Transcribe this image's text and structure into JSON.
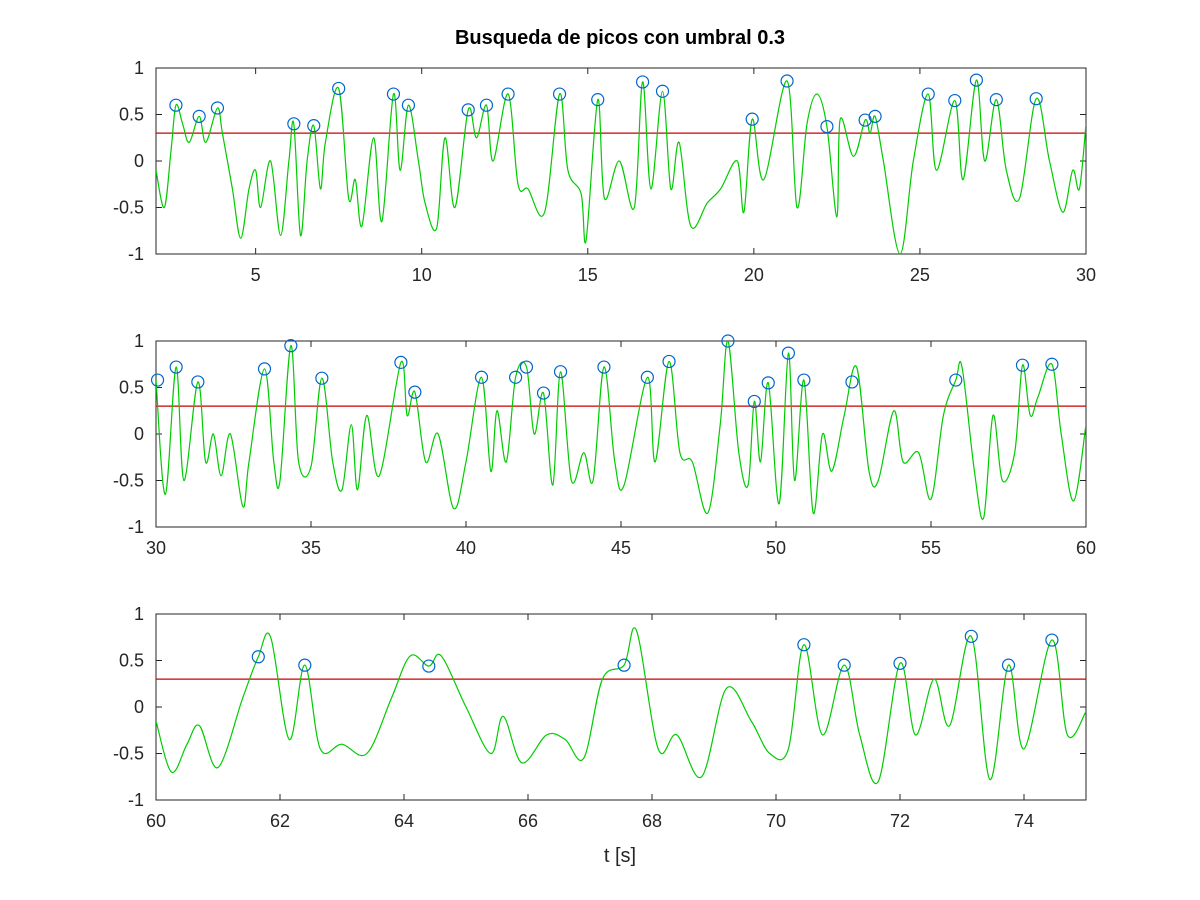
{
  "chart_data": {
    "type": "line",
    "title": "Busqueda de picos con umbral 0.3",
    "xlabel": "t [s]",
    "threshold": 0.3,
    "colors": {
      "signal": "#00cc00",
      "threshold": "#cc0000",
      "peaks": "#0066cc",
      "axes": "#262626"
    },
    "grid": false,
    "subplots": [
      {
        "xlim": [
          2,
          30
        ],
        "ylim": [
          -1,
          1
        ],
        "xticks": [
          5,
          10,
          15,
          20,
          25,
          30
        ],
        "yticks": [
          1,
          0.5,
          0,
          -0.5,
          -1
        ],
        "signal": [
          [
            2,
            -0.1
          ],
          [
            2.25,
            -0.5
          ],
          [
            2.45,
            0.1
          ],
          [
            2.6,
            0.6
          ],
          [
            2.8,
            0.4
          ],
          [
            3.0,
            0.2
          ],
          [
            3.3,
            0.48
          ],
          [
            3.5,
            0.2
          ],
          [
            3.85,
            0.57
          ],
          [
            4.0,
            0.3
          ],
          [
            4.3,
            -0.3
          ],
          [
            4.55,
            -0.83
          ],
          [
            4.8,
            -0.3
          ],
          [
            5.0,
            -0.1
          ],
          [
            5.15,
            -0.5
          ],
          [
            5.45,
            0.0
          ],
          [
            5.75,
            -0.8
          ],
          [
            6.0,
            0.0
          ],
          [
            6.15,
            0.4
          ],
          [
            6.35,
            -0.8
          ],
          [
            6.55,
            0.0
          ],
          [
            6.75,
            0.38
          ],
          [
            6.95,
            -0.3
          ],
          [
            7.1,
            0.2
          ],
          [
            7.5,
            0.78
          ],
          [
            7.8,
            -0.4
          ],
          [
            8.0,
            -0.2
          ],
          [
            8.2,
            -0.7
          ],
          [
            8.55,
            0.25
          ],
          [
            8.8,
            -0.65
          ],
          [
            9.15,
            0.72
          ],
          [
            9.35,
            -0.1
          ],
          [
            9.6,
            0.6
          ],
          [
            9.9,
            0.0
          ],
          [
            10.1,
            -0.45
          ],
          [
            10.45,
            -0.72
          ],
          [
            10.7,
            0.25
          ],
          [
            11.0,
            -0.5
          ],
          [
            11.4,
            0.55
          ],
          [
            11.65,
            0.25
          ],
          [
            11.95,
            0.6
          ],
          [
            12.15,
            0.0
          ],
          [
            12.6,
            0.72
          ],
          [
            12.9,
            -0.25
          ],
          [
            13.2,
            -0.3
          ],
          [
            13.7,
            -0.55
          ],
          [
            14.15,
            0.72
          ],
          [
            14.4,
            -0.1
          ],
          [
            14.8,
            -0.35
          ],
          [
            14.95,
            -0.85
          ],
          [
            15.3,
            0.66
          ],
          [
            15.5,
            -0.4
          ],
          [
            15.95,
            0.0
          ],
          [
            16.4,
            -0.5
          ],
          [
            16.65,
            0.85
          ],
          [
            16.9,
            -0.3
          ],
          [
            17.25,
            0.75
          ],
          [
            17.5,
            -0.3
          ],
          [
            17.75,
            0.2
          ],
          [
            18.1,
            -0.7
          ],
          [
            18.6,
            -0.45
          ],
          [
            19.0,
            -0.3
          ],
          [
            19.5,
            0.0
          ],
          [
            19.7,
            -0.55
          ],
          [
            19.95,
            0.45
          ],
          [
            20.3,
            -0.2
          ],
          [
            21.0,
            0.86
          ],
          [
            21.3,
            -0.5
          ],
          [
            21.6,
            0.4
          ],
          [
            21.9,
            0.72
          ],
          [
            22.2,
            0.37
          ],
          [
            22.5,
            -0.6
          ],
          [
            22.6,
            0.45
          ],
          [
            23.0,
            0.05
          ],
          [
            23.35,
            0.44
          ],
          [
            23.5,
            0.3
          ],
          [
            23.65,
            0.48
          ],
          [
            23.9,
            0.0
          ],
          [
            24.4,
            -1.0
          ],
          [
            24.8,
            0.0
          ],
          [
            25.25,
            0.72
          ],
          [
            25.5,
            -0.1
          ],
          [
            26.05,
            0.65
          ],
          [
            26.3,
            -0.2
          ],
          [
            26.7,
            0.87
          ],
          [
            26.95,
            0.0
          ],
          [
            27.3,
            0.66
          ],
          [
            27.6,
            -0.1
          ],
          [
            28.0,
            -0.4
          ],
          [
            28.5,
            0.67
          ],
          [
            28.9,
            0.0
          ],
          [
            29.3,
            -0.55
          ],
          [
            29.6,
            -0.1
          ],
          [
            29.8,
            -0.3
          ],
          [
            30,
            0.4
          ]
        ],
        "peaks": [
          [
            2.6,
            0.6
          ],
          [
            3.3,
            0.48
          ],
          [
            3.85,
            0.57
          ],
          [
            6.15,
            0.4
          ],
          [
            6.75,
            0.38
          ],
          [
            7.5,
            0.78
          ],
          [
            9.15,
            0.72
          ],
          [
            9.6,
            0.6
          ],
          [
            11.4,
            0.55
          ],
          [
            11.95,
            0.6
          ],
          [
            12.6,
            0.72
          ],
          [
            14.15,
            0.72
          ],
          [
            15.3,
            0.66
          ],
          [
            16.65,
            0.85
          ],
          [
            17.25,
            0.75
          ],
          [
            19.95,
            0.45
          ],
          [
            21.0,
            0.86
          ],
          [
            22.2,
            0.37
          ],
          [
            23.35,
            0.44
          ],
          [
            23.65,
            0.48
          ],
          [
            25.25,
            0.72
          ],
          [
            26.05,
            0.65
          ],
          [
            26.7,
            0.87
          ],
          [
            27.3,
            0.66
          ],
          [
            28.5,
            0.67
          ]
        ]
      },
      {
        "xlim": [
          30,
          60
        ],
        "ylim": [
          -1,
          1
        ],
        "xticks": [
          30,
          35,
          40,
          45,
          50,
          55,
          60
        ],
        "yticks": [
          1,
          0.5,
          0,
          -0.5,
          -1
        ],
        "signal": [
          [
            30,
            0.58
          ],
          [
            30.3,
            -0.65
          ],
          [
            30.65,
            0.72
          ],
          [
            30.9,
            -0.5
          ],
          [
            31.35,
            0.56
          ],
          [
            31.6,
            -0.3
          ],
          [
            31.85,
            0.0
          ],
          [
            32.1,
            -0.45
          ],
          [
            32.4,
            0.0
          ],
          [
            32.8,
            -0.78
          ],
          [
            33.0,
            -0.3
          ],
          [
            33.5,
            0.7
          ],
          [
            33.8,
            -0.3
          ],
          [
            34.0,
            -0.5
          ],
          [
            34.35,
            0.95
          ],
          [
            34.6,
            -0.3
          ],
          [
            35.0,
            -0.35
          ],
          [
            35.35,
            0.6
          ],
          [
            35.7,
            -0.3
          ],
          [
            36.0,
            -0.6
          ],
          [
            36.3,
            0.1
          ],
          [
            36.5,
            -0.6
          ],
          [
            36.8,
            0.2
          ],
          [
            37.2,
            -0.45
          ],
          [
            37.9,
            0.77
          ],
          [
            38.1,
            0.2
          ],
          [
            38.35,
            0.45
          ],
          [
            38.7,
            -0.3
          ],
          [
            39.1,
            0.0
          ],
          [
            39.6,
            -0.8
          ],
          [
            40.0,
            -0.3
          ],
          [
            40.5,
            0.61
          ],
          [
            40.8,
            -0.4
          ],
          [
            41.0,
            0.25
          ],
          [
            41.3,
            -0.3
          ],
          [
            41.6,
            0.61
          ],
          [
            41.95,
            0.72
          ],
          [
            42.2,
            0.0
          ],
          [
            42.5,
            0.44
          ],
          [
            42.8,
            -0.55
          ],
          [
            43.05,
            0.67
          ],
          [
            43.4,
            -0.5
          ],
          [
            43.8,
            -0.2
          ],
          [
            44.1,
            -0.5
          ],
          [
            44.45,
            0.72
          ],
          [
            44.8,
            -0.3
          ],
          [
            45.1,
            -0.55
          ],
          [
            45.85,
            0.61
          ],
          [
            46.1,
            -0.3
          ],
          [
            46.55,
            0.78
          ],
          [
            46.9,
            -0.2
          ],
          [
            47.3,
            -0.3
          ],
          [
            47.8,
            -0.85
          ],
          [
            48.2,
            0.1
          ],
          [
            48.45,
            1.0
          ],
          [
            48.8,
            -0.2
          ],
          [
            49.1,
            -0.55
          ],
          [
            49.3,
            0.35
          ],
          [
            49.5,
            -0.3
          ],
          [
            49.75,
            0.55
          ],
          [
            50.1,
            -0.75
          ],
          [
            50.4,
            0.87
          ],
          [
            50.6,
            -0.5
          ],
          [
            50.9,
            0.58
          ],
          [
            51.2,
            -0.85
          ],
          [
            51.5,
            0.0
          ],
          [
            51.8,
            -0.4
          ],
          [
            52.2,
            0.2
          ],
          [
            52.6,
            0.72
          ],
          [
            53.0,
            -0.4
          ],
          [
            53.3,
            -0.5
          ],
          [
            53.8,
            0.25
          ],
          [
            54.1,
            -0.3
          ],
          [
            54.6,
            -0.2
          ],
          [
            55.0,
            -0.7
          ],
          [
            55.4,
            0.2
          ],
          [
            55.8,
            0.58
          ],
          [
            56.0,
            0.72
          ],
          [
            56.4,
            -0.4
          ],
          [
            56.7,
            -0.9
          ],
          [
            57.0,
            0.2
          ],
          [
            57.3,
            -0.5
          ],
          [
            57.7,
            -0.2
          ],
          [
            57.95,
            0.74
          ],
          [
            58.2,
            0.2
          ],
          [
            58.45,
            0.4
          ],
          [
            58.9,
            0.75
          ],
          [
            59.2,
            0.0
          ],
          [
            59.6,
            -0.72
          ],
          [
            60,
            0.1
          ]
        ],
        "peaks": [
          [
            30.05,
            0.58
          ],
          [
            30.65,
            0.72
          ],
          [
            31.35,
            0.56
          ],
          [
            33.5,
            0.7
          ],
          [
            34.35,
            0.95
          ],
          [
            35.35,
            0.6
          ],
          [
            37.9,
            0.77
          ],
          [
            38.35,
            0.45
          ],
          [
            40.5,
            0.61
          ],
          [
            41.6,
            0.61
          ],
          [
            41.95,
            0.72
          ],
          [
            42.5,
            0.44
          ],
          [
            43.05,
            0.67
          ],
          [
            44.45,
            0.72
          ],
          [
            45.85,
            0.61
          ],
          [
            46.55,
            0.78
          ],
          [
            48.45,
            1.0
          ],
          [
            49.3,
            0.35
          ],
          [
            49.75,
            0.55
          ],
          [
            50.4,
            0.87
          ],
          [
            50.9,
            0.58
          ],
          [
            52.45,
            0.56
          ],
          [
            55.8,
            0.58
          ],
          [
            57.95,
            0.74
          ],
          [
            58.9,
            0.75
          ]
        ]
      },
      {
        "xlim": [
          60,
          75
        ],
        "ylim": [
          -1,
          1
        ],
        "xticks": [
          60,
          62,
          64,
          66,
          68,
          70,
          72,
          74
        ],
        "yticks": [
          1,
          0.5,
          0,
          -0.5,
          -1
        ],
        "signal": [
          [
            60,
            -0.15
          ],
          [
            60.25,
            -0.7
          ],
          [
            60.5,
            -0.4
          ],
          [
            60.7,
            -0.2
          ],
          [
            61.0,
            -0.65
          ],
          [
            61.4,
            0.1
          ],
          [
            61.65,
            0.54
          ],
          [
            61.85,
            0.75
          ],
          [
            62.15,
            -0.35
          ],
          [
            62.4,
            0.45
          ],
          [
            62.65,
            -0.45
          ],
          [
            63.0,
            -0.4
          ],
          [
            63.4,
            -0.5
          ],
          [
            63.8,
            0.1
          ],
          [
            64.1,
            0.55
          ],
          [
            64.4,
            0.44
          ],
          [
            64.6,
            0.55
          ],
          [
            65.0,
            0.0
          ],
          [
            65.4,
            -0.5
          ],
          [
            65.6,
            -0.1
          ],
          [
            65.9,
            -0.6
          ],
          [
            66.3,
            -0.3
          ],
          [
            66.6,
            -0.35
          ],
          [
            66.9,
            -0.55
          ],
          [
            67.2,
            0.3
          ],
          [
            67.55,
            0.45
          ],
          [
            67.75,
            0.82
          ],
          [
            68.1,
            -0.45
          ],
          [
            68.4,
            -0.3
          ],
          [
            68.8,
            -0.75
          ],
          [
            69.2,
            0.2
          ],
          [
            69.6,
            -0.15
          ],
          [
            69.9,
            -0.5
          ],
          [
            70.2,
            -0.45
          ],
          [
            70.45,
            0.67
          ],
          [
            70.75,
            -0.3
          ],
          [
            71.1,
            0.45
          ],
          [
            71.35,
            -0.3
          ],
          [
            71.65,
            -0.8
          ],
          [
            72.0,
            0.47
          ],
          [
            72.25,
            -0.3
          ],
          [
            72.55,
            0.3
          ],
          [
            72.8,
            -0.2
          ],
          [
            73.15,
            0.76
          ],
          [
            73.45,
            -0.78
          ],
          [
            73.75,
            0.45
          ],
          [
            74.0,
            -0.45
          ],
          [
            74.45,
            0.72
          ],
          [
            74.7,
            -0.3
          ],
          [
            75,
            -0.05
          ]
        ],
        "peaks": [
          [
            61.65,
            0.54
          ],
          [
            62.4,
            0.45
          ],
          [
            64.4,
            0.44
          ],
          [
            67.55,
            0.45
          ],
          [
            70.45,
            0.67
          ],
          [
            71.1,
            0.45
          ],
          [
            72.0,
            0.47
          ],
          [
            73.15,
            0.76
          ],
          [
            73.75,
            0.45
          ],
          [
            74.45,
            0.72
          ]
        ]
      }
    ]
  }
}
